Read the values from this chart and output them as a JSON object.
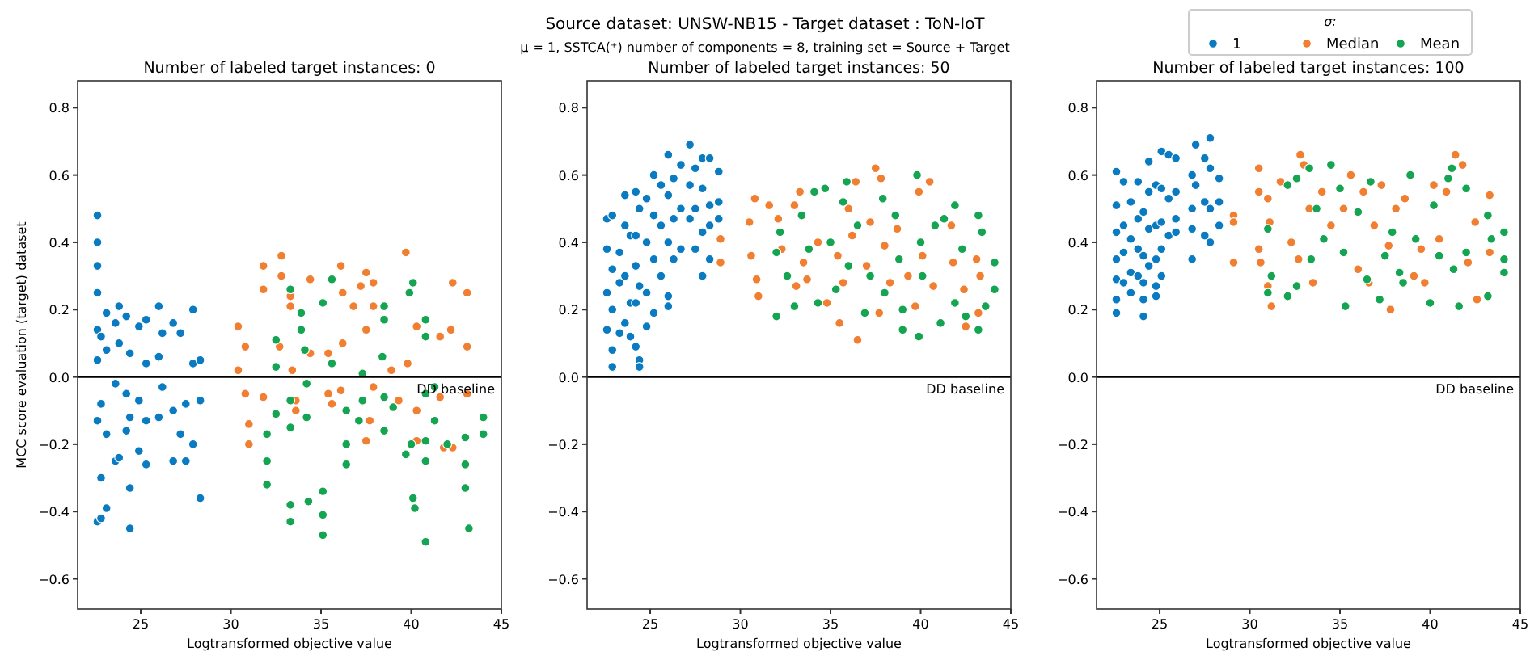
{
  "chart_data": [
    {
      "type": "scatter",
      "title": "Number of labeled target instances: 0",
      "xlabel": "Logtransformed objective value",
      "ylabel": "MCC score evaluation (target) dataset",
      "marker": "circle",
      "annotations": [
        "Source dataset: UNSW-NB15 - Target dataset : ToN-IoT",
        "μ = 1, SSTCA(⁺) number of components = 8, training set = Source + Target"
      ],
      "xlim": [
        21.5,
        45.0
      ],
      "ylim": [
        -0.69,
        0.88
      ],
      "xticks": [
        25,
        30,
        35,
        40,
        45
      ],
      "yticks": [
        {
          "value": -0.6,
          "label": "−0.6"
        },
        {
          "value": -0.4,
          "label": "−0.4"
        },
        {
          "value": -0.2,
          "label": "−0.2"
        },
        {
          "value": 0,
          "label": "0.0"
        },
        {
          "value": 0.2,
          "label": "0.2"
        },
        {
          "value": 0.4,
          "label": "0.4"
        },
        {
          "value": 0.6,
          "label": "0.6"
        },
        {
          "value": 0.8,
          "label": "0.8"
        }
      ],
      "ref_lines": [
        {
          "axis": "y",
          "value": 0,
          "label": "DD baseline",
          "color": "#000000"
        }
      ],
      "series": [
        {
          "color": "#0a7bc1",
          "x": [
            22.6,
            22.6,
            22.6,
            22.6,
            22.6,
            22.6,
            22.6,
            22.6,
            22.8,
            22.8,
            22.8,
            22.8,
            23.1,
            23.1,
            23.1,
            23.1,
            23.6,
            23.6,
            23.6,
            23.8,
            23.8,
            23.8,
            24.2,
            24.2,
            24.2,
            24.4,
            24.4,
            24.4,
            24.4,
            24.9,
            24.9,
            24.9,
            25.3,
            25.3,
            25.3,
            25.3,
            26.0,
            26.0,
            26.0,
            26.2,
            26.2,
            26.8,
            26.8,
            26.8,
            27.2,
            27.2,
            27.5,
            27.5,
            27.9,
            27.9,
            27.9,
            28.3,
            28.3,
            28.3
          ],
          "values": [
            0.48,
            0.4,
            0.33,
            0.25,
            0.14,
            0.05,
            -0.13,
            -0.43,
            0.12,
            -0.08,
            -0.3,
            -0.42,
            0.19,
            0.08,
            -0.17,
            -0.39,
            0.16,
            -0.02,
            -0.25,
            0.21,
            0.1,
            -0.24,
            0.18,
            -0.05,
            -0.16,
            0.07,
            -0.12,
            -0.33,
            -0.45,
            0.15,
            -0.07,
            -0.22,
            0.17,
            0.04,
            -0.13,
            -0.26,
            0.21,
            0.06,
            -0.12,
            0.13,
            -0.03,
            0.16,
            -0.1,
            -0.25,
            0.13,
            -0.17,
            -0.08,
            -0.25,
            0.2,
            0.04,
            -0.2,
            0.05,
            -0.07,
            -0.36
          ]
        },
        {
          "color": "#f07f32",
          "x": [
            30.4,
            30.4,
            30.8,
            30.8,
            31.0,
            31.0,
            31.8,
            31.8,
            31.8,
            32.7,
            32.8,
            32.8,
            33.3,
            33.3,
            33.4,
            33.6,
            33.6,
            34.4,
            34.4,
            35.4,
            35.4,
            35.6,
            36.1,
            36.2,
            36.2,
            36.1,
            36.8,
            37.2,
            37.5,
            37.5,
            37.5,
            37.9,
            37.9,
            37.9,
            37.7,
            38.9,
            39.3,
            39.7,
            39.8,
            40.3,
            40.3,
            40.3,
            41.6,
            41.6,
            41.8,
            42.2,
            42.3,
            42.3,
            43.1,
            43.1,
            43.1
          ],
          "values": [
            0.15,
            0.02,
            0.09,
            -0.05,
            -0.14,
            -0.2,
            0.33,
            0.26,
            -0.06,
            0.09,
            0.36,
            0.3,
            0.24,
            0.21,
            0.02,
            -0.07,
            -0.1,
            0.29,
            0.07,
            0.07,
            -0.05,
            -0.08,
            0.33,
            0.25,
            0.1,
            -0.04,
            0.21,
            0.27,
            0.31,
            0.14,
            -0.19,
            0.28,
            0.21,
            -0.03,
            -0.13,
            0.02,
            -0.07,
            0.37,
            0.04,
            -0.1,
            -0.19,
            0.15,
            0.12,
            -0.06,
            -0.21,
            0.14,
            0.28,
            -0.21,
            0.25,
            0.09,
            -0.05
          ]
        },
        {
          "color": "#15a452",
          "x": [
            32.5,
            32.5,
            32.5,
            32.0,
            32.0,
            32.0,
            33.3,
            33.3,
            33.3,
            33.3,
            33.3,
            33.9,
            33.9,
            34.1,
            34.2,
            34.2,
            34.3,
            35.1,
            35.1,
            35.1,
            35.1,
            35.6,
            35.6,
            36.4,
            36.4,
            36.4,
            37.3,
            37.3,
            37.1,
            38.5,
            38.5,
            38.4,
            38.5,
            38.5,
            39.0,
            39.7,
            39.9,
            40.1,
            40.0,
            40.1,
            40.2,
            40.8,
            40.8,
            40.8,
            40.8,
            40.8,
            40.8,
            41.3,
            41.3,
            42.0,
            43.0,
            43.0,
            43.0,
            43.2,
            44.0,
            44.0
          ],
          "values": [
            0.11,
            0.03,
            -0.11,
            -0.17,
            -0.25,
            -0.32,
            0.26,
            -0.07,
            -0.15,
            -0.38,
            -0.43,
            0.19,
            0.14,
            0.08,
            -0.02,
            -0.12,
            -0.37,
            0.22,
            -0.34,
            -0.41,
            -0.47,
            0.29,
            0.04,
            -0.1,
            -0.2,
            -0.26,
            0.01,
            -0.07,
            -0.13,
            0.21,
            0.17,
            0.06,
            -0.06,
            -0.16,
            -0.09,
            -0.23,
            0.25,
            0.28,
            -0.2,
            -0.36,
            -0.39,
            0.17,
            0.12,
            -0.05,
            -0.19,
            -0.25,
            -0.49,
            -0.03,
            -0.13,
            -0.2,
            -0.18,
            -0.26,
            -0.33,
            -0.45,
            -0.12,
            -0.17
          ]
        }
      ]
    },
    {
      "type": "scatter",
      "title": "Number of labeled target instances: 50",
      "xlabel": "Logtransformed objective value",
      "marker": "circle",
      "xlim": [
        21.5,
        45.0
      ],
      "ylim": [
        -0.69,
        0.88
      ],
      "xticks": [
        25,
        30,
        35,
        40,
        45
      ],
      "yticks": [
        {
          "value": -0.6,
          "label": "−0.6"
        },
        {
          "value": -0.4,
          "label": "−0.4"
        },
        {
          "value": -0.2,
          "label": "−0.2"
        },
        {
          "value": 0,
          "label": "0.0"
        },
        {
          "value": 0.2,
          "label": "0.2"
        },
        {
          "value": 0.4,
          "label": "0.4"
        },
        {
          "value": 0.6,
          "label": "0.6"
        },
        {
          "value": 0.8,
          "label": "0.8"
        }
      ],
      "ref_lines": [
        {
          "axis": "y",
          "value": 0,
          "label": "DD baseline",
          "color": "#000000"
        }
      ],
      "series": [
        {
          "color": "#0a7bc1",
          "x": [
            22.6,
            22.6,
            22.6,
            22.6,
            22.9,
            22.9,
            22.9,
            22.9,
            22.9,
            23.3,
            23.3,
            23.3,
            23.6,
            23.6,
            23.6,
            23.6,
            23.9,
            23.9,
            23.9,
            24.2,
            24.2,
            24.2,
            24.2,
            24.2,
            24.4,
            24.4,
            24.4,
            24.4,
            24.8,
            24.8,
            24.8,
            24.8,
            25.2,
            25.2,
            25.2,
            25.2,
            25.6,
            25.6,
            25.6,
            26.0,
            26.0,
            26.0,
            26.0,
            26.0,
            26.3,
            26.3,
            26.3,
            26.7,
            26.7,
            26.7,
            27.2,
            27.2,
            27.2,
            27.5,
            27.5,
            27.5,
            27.9,
            27.9,
            27.9,
            27.9,
            28.3,
            28.3,
            28.3,
            28.3,
            28.8,
            28.8,
            28.8
          ],
          "values": [
            0.47,
            0.38,
            0.25,
            0.14,
            0.48,
            0.32,
            0.2,
            0.08,
            0.03,
            0.37,
            0.28,
            0.13,
            0.54,
            0.45,
            0.3,
            0.16,
            0.42,
            0.22,
            0.12,
            0.55,
            0.42,
            0.33,
            0.22,
            0.09,
            0.5,
            0.27,
            0.05,
            0.03,
            0.53,
            0.4,
            0.25,
            0.15,
            0.6,
            0.48,
            0.35,
            0.19,
            0.57,
            0.45,
            0.3,
            0.66,
            0.54,
            0.4,
            0.24,
            0.21,
            0.59,
            0.47,
            0.35,
            0.63,
            0.5,
            0.38,
            0.69,
            0.57,
            0.47,
            0.62,
            0.5,
            0.38,
            0.65,
            0.56,
            0.43,
            0.3,
            0.65,
            0.51,
            0.45,
            0.35,
            0.61,
            0.52,
            0.47
          ]
        },
        {
          "color": "#f07f32",
          "x": [
            28.9,
            28.9,
            30.5,
            30.6,
            30.8,
            30.9,
            31.0,
            31.6,
            32.1,
            32.3,
            33.0,
            33.3,
            33.1,
            33.5,
            33.7,
            34.3,
            34.8,
            35.4,
            35.5,
            35.7,
            36.0,
            36.2,
            36.4,
            36.5,
            37.0,
            37.2,
            37.5,
            37.7,
            37.8,
            38.0,
            38.3,
            38.7,
            39.3,
            39.7,
            39.9,
            40.1,
            40.5,
            40.7,
            41.7,
            41.8,
            42.4,
            42.5,
            43.1,
            43.2,
            43.3
          ],
          "values": [
            0.41,
            0.34,
            0.46,
            0.36,
            0.53,
            0.29,
            0.24,
            0.51,
            0.47,
            0.38,
            0.51,
            0.55,
            0.27,
            0.34,
            0.29,
            0.4,
            0.22,
            0.36,
            0.16,
            0.28,
            0.5,
            0.42,
            0.58,
            0.11,
            0.33,
            0.46,
            0.62,
            0.19,
            0.59,
            0.39,
            0.28,
            0.44,
            0.3,
            0.21,
            0.55,
            0.36,
            0.58,
            0.27,
            0.45,
            0.34,
            0.26,
            0.15,
            0.35,
            0.19,
            0.3
          ]
        },
        {
          "color": "#15a452",
          "x": [
            32.0,
            32.0,
            32.2,
            32.6,
            33.0,
            33.4,
            33.8,
            34.1,
            34.3,
            34.7,
            35.0,
            35.3,
            35.7,
            35.9,
            36.0,
            36.5,
            36.9,
            37.2,
            37.9,
            38.0,
            38.6,
            38.8,
            39.0,
            39.0,
            39.8,
            39.9,
            40.0,
            40.1,
            40.8,
            41.1,
            41.3,
            41.9,
            41.9,
            42.3,
            42.5,
            43.2,
            43.2,
            43.4,
            43.6,
            44.1,
            44.1
          ],
          "values": [
            0.37,
            0.18,
            0.43,
            0.3,
            0.21,
            0.48,
            0.38,
            0.55,
            0.22,
            0.56,
            0.4,
            0.26,
            0.52,
            0.58,
            0.33,
            0.45,
            0.19,
            0.3,
            0.53,
            0.25,
            0.48,
            0.35,
            0.14,
            0.2,
            0.6,
            0.12,
            0.4,
            0.3,
            0.45,
            0.16,
            0.47,
            0.51,
            0.22,
            0.38,
            0.18,
            0.48,
            0.14,
            0.43,
            0.21,
            0.34,
            0.26
          ]
        }
      ]
    },
    {
      "type": "scatter",
      "title": "Number of labeled target instances: 100",
      "xlabel": "Logtransformed objective value",
      "marker": "circle",
      "legend": "top",
      "legend_title": "σ:",
      "xlim": [
        21.5,
        45.0
      ],
      "ylim": [
        -0.69,
        0.88
      ],
      "xticks": [
        25,
        30,
        35,
        40,
        45
      ],
      "yticks": [
        {
          "value": -0.6,
          "label": "−0.6"
        },
        {
          "value": -0.4,
          "label": "−0.4"
        },
        {
          "value": -0.2,
          "label": "−0.2"
        },
        {
          "value": 0,
          "label": "0.0"
        },
        {
          "value": 0.2,
          "label": "0.2"
        },
        {
          "value": 0.4,
          "label": "0.4"
        },
        {
          "value": 0.6,
          "label": "0.6"
        },
        {
          "value": 0.8,
          "label": "0.8"
        }
      ],
      "ref_lines": [
        {
          "axis": "y",
          "value": 0,
          "label": "DD baseline",
          "color": "#000000"
        }
      ],
      "series": [
        {
          "name": "1",
          "color": "#0a7bc1",
          "x": [
            22.6,
            22.6,
            22.6,
            22.6,
            22.6,
            22.6,
            22.6,
            23.0,
            23.0,
            23.0,
            23.0,
            23.4,
            23.4,
            23.4,
            23.4,
            23.8,
            23.8,
            23.8,
            23.8,
            24.1,
            24.1,
            24.1,
            24.1,
            24.1,
            24.4,
            24.4,
            24.4,
            24.4,
            24.8,
            24.8,
            24.8,
            24.8,
            24.8,
            25.1,
            25.1,
            25.1,
            25.1,
            25.1,
            25.5,
            25.5,
            25.5,
            25.9,
            25.9,
            25.9,
            25.9,
            26.8,
            26.8,
            26.8,
            26.8,
            27.0,
            27.0,
            27.5,
            27.5,
            27.5,
            27.8,
            27.8,
            27.8,
            27.8,
            28.3,
            28.3,
            28.3
          ],
          "values": [
            0.61,
            0.51,
            0.43,
            0.35,
            0.29,
            0.23,
            0.19,
            0.58,
            0.45,
            0.37,
            0.28,
            0.52,
            0.41,
            0.31,
            0.25,
            0.58,
            0.47,
            0.38,
            0.3,
            0.49,
            0.36,
            0.28,
            0.23,
            0.18,
            0.64,
            0.55,
            0.44,
            0.33,
            0.57,
            0.45,
            0.35,
            0.27,
            0.24,
            0.67,
            0.56,
            0.46,
            0.38,
            0.3,
            0.66,
            0.53,
            0.42,
            0.65,
            0.55,
            0.47,
            0.43,
            0.6,
            0.5,
            0.44,
            0.35,
            0.69,
            0.57,
            0.65,
            0.52,
            0.42,
            0.71,
            0.62,
            0.5,
            0.4,
            0.59,
            0.52,
            0.45
          ]
        },
        {
          "name": "Median",
          "color": "#f07f32",
          "x": [
            29.1,
            29.1,
            29.1,
            30.5,
            30.5,
            30.5,
            30.6,
            31.0,
            31.1,
            31.0,
            31.2,
            31.7,
            32.3,
            32.8,
            32.7,
            33.0,
            33.3,
            33.5,
            34.0,
            34.5,
            35.2,
            35.6,
            36.0,
            36.3,
            36.6,
            36.9,
            37.3,
            37.7,
            37.8,
            38.1,
            38.6,
            39.1,
            39.5,
            39.7,
            40.2,
            40.5,
            40.9,
            41.4,
            41.8,
            42.1,
            42.6,
            42.5,
            43.3,
            43.3
          ],
          "values": [
            0.48,
            0.46,
            0.34,
            0.55,
            0.38,
            0.62,
            0.34,
            0.53,
            0.46,
            0.27,
            0.21,
            0.58,
            0.4,
            0.66,
            0.35,
            0.63,
            0.5,
            0.28,
            0.55,
            0.45,
            0.5,
            0.6,
            0.32,
            0.55,
            0.28,
            0.45,
            0.57,
            0.39,
            0.2,
            0.5,
            0.53,
            0.3,
            0.38,
            0.28,
            0.57,
            0.41,
            0.55,
            0.66,
            0.63,
            0.34,
            0.23,
            0.46,
            0.54,
            0.37
          ]
        },
        {
          "name": "Mean",
          "color": "#15a452",
          "x": [
            31.0,
            31.0,
            31.2,
            32.1,
            32.1,
            32.6,
            32.6,
            33.3,
            33.4,
            33.7,
            34.1,
            34.5,
            35.0,
            35.2,
            35.3,
            36.0,
            36.5,
            36.7,
            37.2,
            37.5,
            37.9,
            38.3,
            38.5,
            38.9,
            39.2,
            40.0,
            40.2,
            40.5,
            41.0,
            41.2,
            41.3,
            41.6,
            42.0,
            42.0,
            43.2,
            43.2,
            43.4,
            44.1,
            44.1,
            44.1
          ],
          "values": [
            0.44,
            0.25,
            0.3,
            0.57,
            0.24,
            0.59,
            0.27,
            0.62,
            0.35,
            0.5,
            0.41,
            0.63,
            0.56,
            0.37,
            0.21,
            0.49,
            0.29,
            0.58,
            0.23,
            0.36,
            0.43,
            0.31,
            0.28,
            0.6,
            0.41,
            0.22,
            0.51,
            0.36,
            0.59,
            0.62,
            0.32,
            0.21,
            0.56,
            0.37,
            0.48,
            0.24,
            0.41,
            0.43,
            0.35,
            0.31
          ]
        }
      ]
    }
  ]
}
